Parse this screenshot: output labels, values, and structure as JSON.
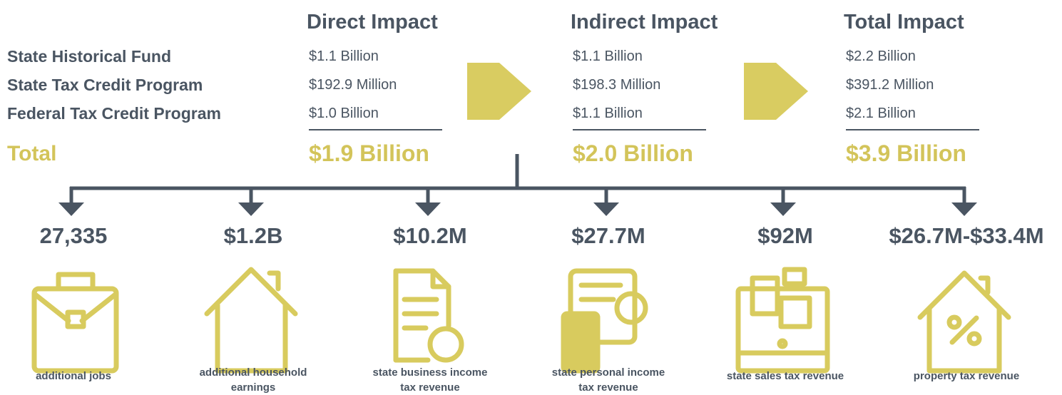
{
  "programs": [
    "State Historical Fund",
    "State Tax Credit Program",
    "Federal Tax Credit Program"
  ],
  "total_label": "Total",
  "columns": [
    {
      "title": "Direct Impact",
      "values": [
        "$1.1 Billion",
        "$192.9 Million",
        "$1.0 Billion"
      ],
      "total": "$1.9 Billion"
    },
    {
      "title": "Indirect Impact",
      "values": [
        "$1.1 Billion",
        "$198.3 Million",
        "$1.1 Billion"
      ],
      "total": "$2.0 Billion"
    },
    {
      "title": "Total Impact",
      "values": [
        "$2.2 Billion",
        "$391.2 Million",
        "$2.1 Billion"
      ],
      "total": "$3.9 Billion"
    }
  ],
  "metrics": [
    {
      "value": "27,335",
      "label": [
        "additional jobs"
      ]
    },
    {
      "value": "$1.2B",
      "label": [
        "additional household",
        "earnings"
      ]
    },
    {
      "value": "$10.2M",
      "label": [
        "state business income",
        "tax revenue"
      ]
    },
    {
      "value": "$27.7M",
      "label": [
        "state personal income",
        "tax revenue"
      ]
    },
    {
      "value": "$92M",
      "label": [
        "state sales tax revenue"
      ]
    },
    {
      "value": "$26.7M-$33.4M",
      "label": [
        "property tax revenue"
      ]
    }
  ]
}
